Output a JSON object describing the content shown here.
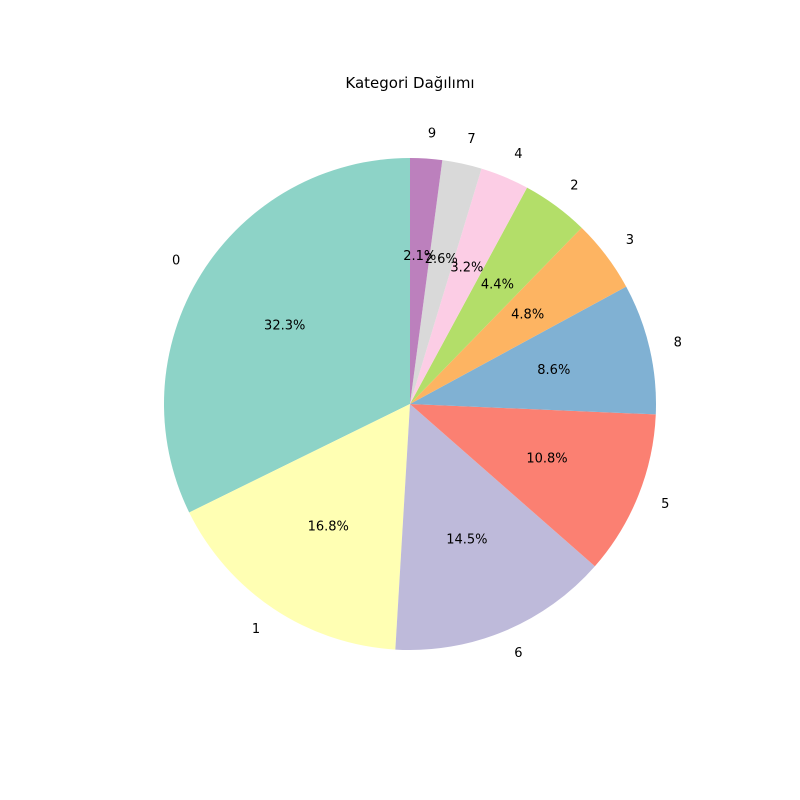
{
  "chart_data": {
    "type": "pie",
    "title": "Kategori Dağılımı",
    "start_angle_deg": 90,
    "direction": "counterclockwise",
    "slices": [
      {
        "label": "0",
        "value": 32.3,
        "pct_label": "32.3%",
        "color": "#8dd3c7"
      },
      {
        "label": "1",
        "value": 16.8,
        "pct_label": "16.8%",
        "color": "#ffffb3"
      },
      {
        "label": "6",
        "value": 14.5,
        "pct_label": "14.5%",
        "color": "#bebada"
      },
      {
        "label": "5",
        "value": 10.8,
        "pct_label": "10.8%",
        "color": "#fb8072"
      },
      {
        "label": "8",
        "value": 8.6,
        "pct_label": "8.6%",
        "color": "#80b1d3"
      },
      {
        "label": "3",
        "value": 4.8,
        "pct_label": "4.8%",
        "color": "#fdb462"
      },
      {
        "label": "2",
        "value": 4.4,
        "pct_label": "4.4%",
        "color": "#b3de69"
      },
      {
        "label": "4",
        "value": 3.2,
        "pct_label": "3.2%",
        "color": "#fccde5"
      },
      {
        "label": "7",
        "value": 2.6,
        "pct_label": "2.6%",
        "color": "#d9d9d9"
      },
      {
        "label": "9",
        "value": 2.1,
        "pct_label": "2.1%",
        "color": "#bc80bd"
      }
    ]
  }
}
